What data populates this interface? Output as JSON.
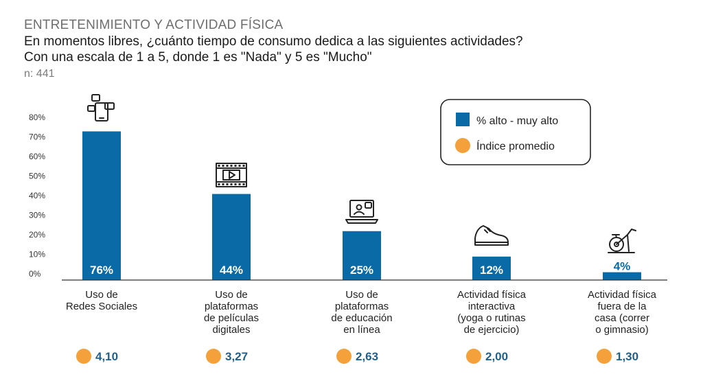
{
  "header": {
    "section": "ENTRETENIMIENTO Y ACTIVIDAD FÍSICA",
    "question_line1": "En momentos libres, ¿cuánto tiempo de consumo dedica a las siguientes actividades?",
    "question_line2": "Con una escala de 1 a 5, donde 1 es \"Nada\" y 5 es \"Mucho\"",
    "sample": "n: 441"
  },
  "legend": {
    "bar_label": "% alto - muy alto",
    "dot_label": "Índice promedio"
  },
  "colors": {
    "bar": "#0a6aa6",
    "dot": "#f4a13b",
    "index_text": "#1f5f8b",
    "small_value_text": "#0a6aa6"
  },
  "chart_data": {
    "type": "bar",
    "title": "ENTRETENIMIENTO Y ACTIVIDAD FÍSICA",
    "ylim": [
      0,
      80
    ],
    "yticks": [
      0,
      10,
      20,
      30,
      40,
      50,
      60,
      70,
      80
    ],
    "ytick_labels": [
      "0%",
      "10%",
      "20%",
      "30%",
      "40%",
      "50%",
      "60%",
      "70%",
      "80%"
    ],
    "grid": false,
    "legend_position": "top-right",
    "categories": [
      [
        "Uso de",
        "Redes Sociales"
      ],
      [
        "Uso de",
        "plataformas",
        "de películas",
        "digitales"
      ],
      [
        "Uso de",
        "plataformas",
        "de educación",
        "en línea"
      ],
      [
        "Actividad física",
        "interactiva",
        "(yoga o rutinas",
        "de ejercicio)"
      ],
      [
        "Actividad física",
        "fuera de la",
        "casa (correr",
        "o gimnasio)"
      ]
    ],
    "series": [
      {
        "name": "% alto - muy alto",
        "values": [
          76,
          44,
          25,
          12,
          4
        ],
        "labels": [
          "76%",
          "44%",
          "25%",
          "12%",
          "4%"
        ]
      },
      {
        "name": "Índice promedio",
        "values": [
          4.1,
          3.27,
          2.63,
          2.0,
          1.3
        ],
        "labels": [
          "4,10",
          "3,27",
          "2,63",
          "2,00",
          "1,30"
        ]
      }
    ],
    "icons": [
      "social-media-phone-icon",
      "film-strip-icon",
      "laptop-video-call-icon",
      "sneaker-icon",
      "exercise-bike-icon"
    ]
  }
}
